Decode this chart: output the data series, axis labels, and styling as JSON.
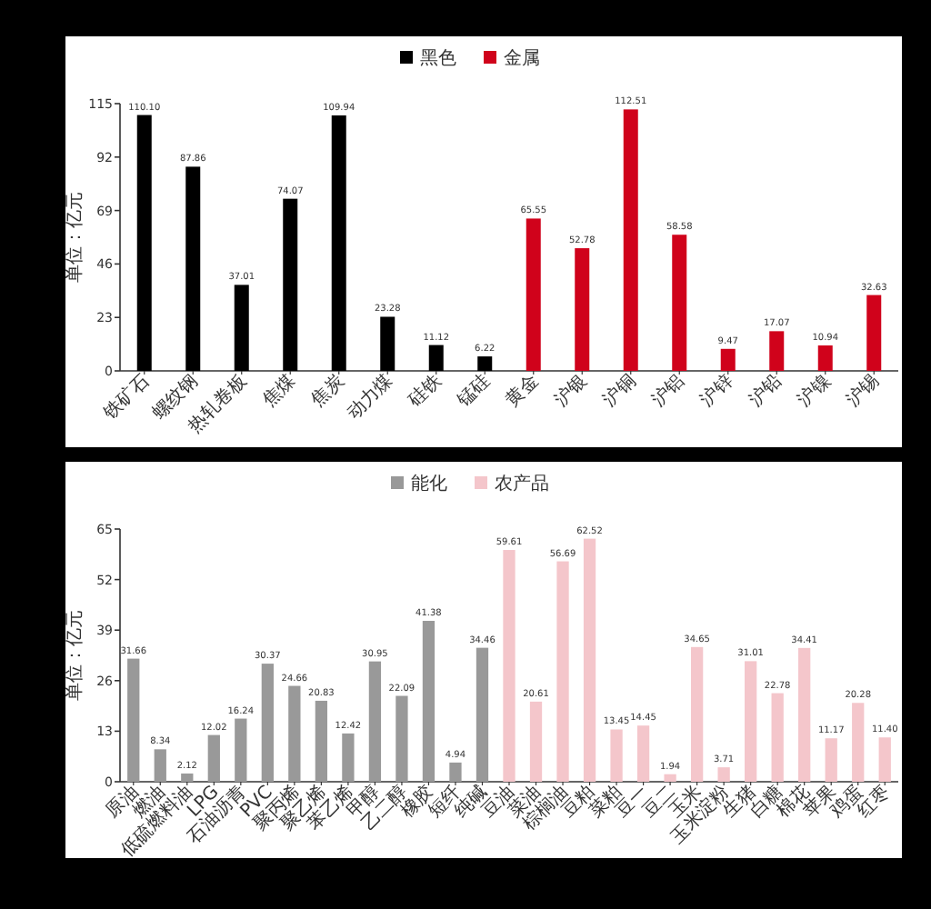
{
  "chart_data": [
    {
      "type": "bar",
      "ylabel": "单位：亿元",
      "legend": "top",
      "ylim": [
        0,
        115
      ],
      "yticks": [
        0,
        23,
        46,
        69,
        92,
        115
      ],
      "categories": [
        "铁矿石",
        "螺纹钢",
        "热轧卷板",
        "焦煤",
        "焦炭",
        "动力煤",
        "硅铁",
        "锰硅",
        "黄金",
        "沪银",
        "沪铜",
        "沪铝",
        "沪锌",
        "沪铅",
        "沪镍",
        "沪锡"
      ],
      "series": [
        {
          "name": "黑色",
          "color": "#000000",
          "values": [
            110.1,
            87.86,
            37.01,
            74.07,
            109.94,
            23.28,
            11.12,
            6.22,
            null,
            null,
            null,
            null,
            null,
            null,
            null,
            null
          ],
          "value_labels": [
            "110.10",
            "87.86",
            "37.01",
            "74.07",
            "109.94",
            "23.28",
            "11.12",
            "6.22",
            null,
            null,
            null,
            null,
            null,
            null,
            null,
            null
          ]
        },
        {
          "name": "金属",
          "color": "#d0021b",
          "values": [
            null,
            null,
            null,
            null,
            null,
            null,
            null,
            null,
            65.55,
            52.78,
            112.51,
            58.58,
            9.47,
            17.07,
            10.94,
            32.63
          ],
          "value_labels": [
            null,
            null,
            null,
            null,
            null,
            null,
            null,
            null,
            "65.55",
            "52.78",
            "112.51",
            "58.58",
            "9.47",
            "17.07",
            "10.94",
            "32.63"
          ]
        }
      ]
    },
    {
      "type": "bar",
      "ylabel": "单位：亿元",
      "legend": "top",
      "ylim": [
        0,
        65
      ],
      "yticks": [
        0,
        13,
        26,
        39,
        52,
        65
      ],
      "categories": [
        "原油",
        "燃油",
        "低硫燃料油",
        "LPG",
        "石油沥青",
        "PVC",
        "聚丙烯",
        "聚乙烯",
        "苯乙烯",
        "甲醇",
        "乙二醇",
        "橡胶",
        "短纤",
        "纯碱",
        "豆油",
        "菜油",
        "棕榈油",
        "豆粕",
        "菜粕",
        "豆一",
        "豆二",
        "玉米",
        "玉米淀粉",
        "生猪",
        "白糖",
        "棉花",
        "苹果",
        "鸡蛋",
        "红枣"
      ],
      "series": [
        {
          "name": "能化",
          "color": "#999999",
          "values": [
            31.66,
            8.34,
            2.12,
            12.02,
            16.24,
            30.37,
            24.66,
            20.83,
            12.42,
            30.95,
            22.09,
            41.38,
            4.94,
            34.46,
            null,
            null,
            null,
            null,
            null,
            null,
            null,
            null,
            null,
            null,
            null,
            null,
            null,
            null,
            null
          ],
          "value_labels": [
            "31.66",
            "8.34",
            "2.12",
            "12.02",
            "16.24",
            "30.37",
            "24.66",
            "20.83",
            "12.42",
            "30.95",
            "22.09",
            "41.38",
            "4.94",
            "34.46",
            null,
            null,
            null,
            null,
            null,
            null,
            null,
            null,
            null,
            null,
            null,
            null,
            null,
            null,
            null
          ]
        },
        {
          "name": "农产品",
          "color": "#f4c6cb",
          "values": [
            null,
            null,
            null,
            null,
            null,
            null,
            null,
            null,
            null,
            null,
            null,
            null,
            null,
            null,
            59.61,
            20.61,
            56.69,
            62.52,
            13.45,
            14.45,
            1.94,
            34.65,
            3.71,
            31.01,
            22.78,
            34.41,
            11.17,
            20.28,
            11.4
          ],
          "value_labels": [
            null,
            null,
            null,
            null,
            null,
            null,
            null,
            null,
            null,
            null,
            null,
            null,
            null,
            null,
            "59.61",
            "20.61",
            "56.69",
            "62.52",
            "13.45",
            "14.45",
            "1.94",
            "34.65",
            "3.71",
            "31.01",
            "22.78",
            "34.41",
            "11.17",
            "20.28",
            "11.40"
          ]
        }
      ]
    }
  ]
}
